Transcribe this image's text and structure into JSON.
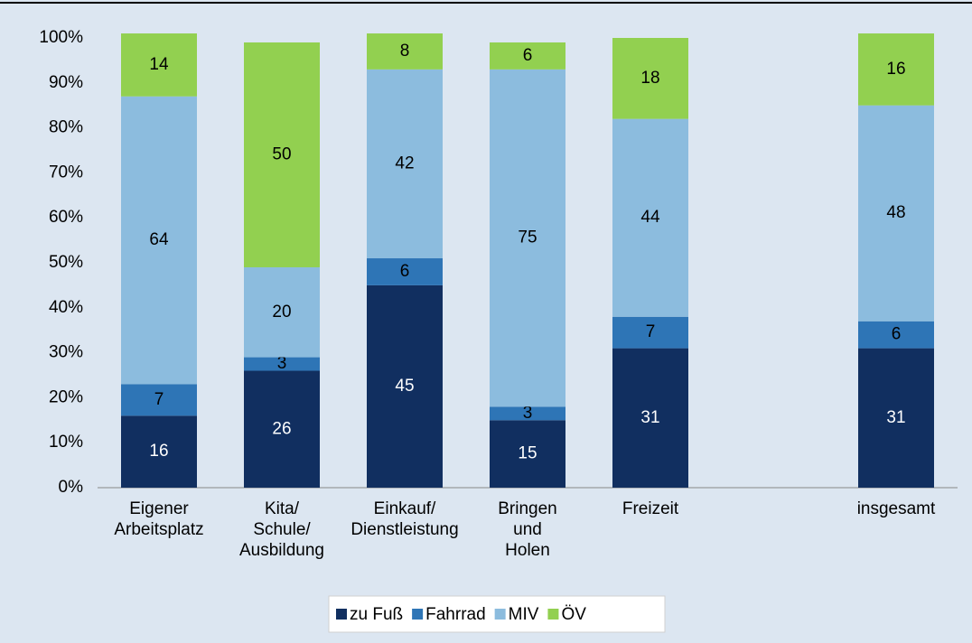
{
  "chart_data": {
    "type": "stacked_bar",
    "categories": [
      "Eigener\nArbeitsplatz",
      "Kita/\nSchule/\nAusbildung",
      "Einkauf/\nDienstleistung",
      "Bringen\nund\nHolen",
      "Freizeit",
      null,
      "insgesamt"
    ],
    "series": [
      {
        "name": "zu Fuß",
        "color": "#112f60",
        "values": [
          16,
          26,
          45,
          15,
          31,
          null,
          31
        ]
      },
      {
        "name": "Fahrrad",
        "color": "#2e75b6",
        "values": [
          7,
          3,
          6,
          3,
          7,
          null,
          6
        ]
      },
      {
        "name": "MIV",
        "color": "#8cbcde",
        "values": [
          64,
          20,
          42,
          75,
          44,
          null,
          48
        ]
      },
      {
        "name": "ÖV",
        "color": "#92d050",
        "values": [
          14,
          50,
          8,
          6,
          18,
          null,
          16
        ]
      }
    ],
    "ylim": [
      0,
      100
    ],
    "yticks": [
      {
        "value": 0,
        "label": "0%"
      },
      {
        "value": 10,
        "label": "10%"
      },
      {
        "value": 20,
        "label": "20%"
      },
      {
        "value": 30,
        "label": "30%"
      },
      {
        "value": 40,
        "label": "40%"
      },
      {
        "value": 50,
        "label": "50%"
      },
      {
        "value": 60,
        "label": "60%"
      },
      {
        "value": 70,
        "label": "70%"
      },
      {
        "value": 80,
        "label": "80%"
      },
      {
        "value": 90,
        "label": "90%"
      },
      {
        "value": 100,
        "label": "100%"
      }
    ],
    "grid": false,
    "legend": "bottom"
  }
}
